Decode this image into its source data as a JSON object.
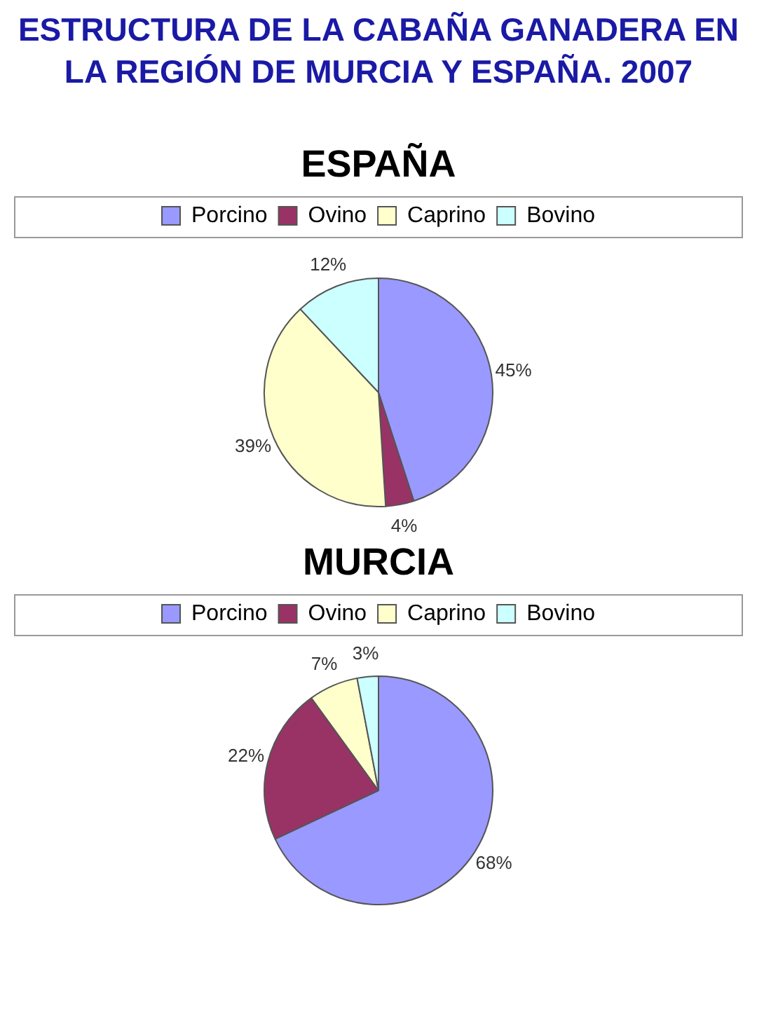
{
  "chart_data": [
    {
      "type": "pie",
      "title": "ESTRUCTURA DE LA CABAÑA GANADERA EN LA REGIÓN DE MURCIA Y ESPAÑA. 2007",
      "subtitle": "ESPAÑA",
      "categories": [
        "Porcino",
        "Ovino",
        "Caprino",
        "Bovino"
      ],
      "values": [
        45,
        4,
        39,
        12
      ],
      "value_labels": [
        "45%",
        "4%",
        "39%",
        "12%"
      ],
      "colors": [
        "#9999ff",
        "#993366",
        "#ffffcc",
        "#ccffff"
      ],
      "legend": "top"
    },
    {
      "type": "pie",
      "title": "MURCIA",
      "categories": [
        "Porcino",
        "Ovino",
        "Caprino",
        "Bovino"
      ],
      "values": [
        68,
        22,
        7,
        3
      ],
      "value_labels": [
        "68%",
        "22%",
        "7%",
        "3%"
      ],
      "colors": [
        "#9999ff",
        "#993366",
        "#ffffcc",
        "#ccffff"
      ],
      "legend": "top"
    }
  ]
}
